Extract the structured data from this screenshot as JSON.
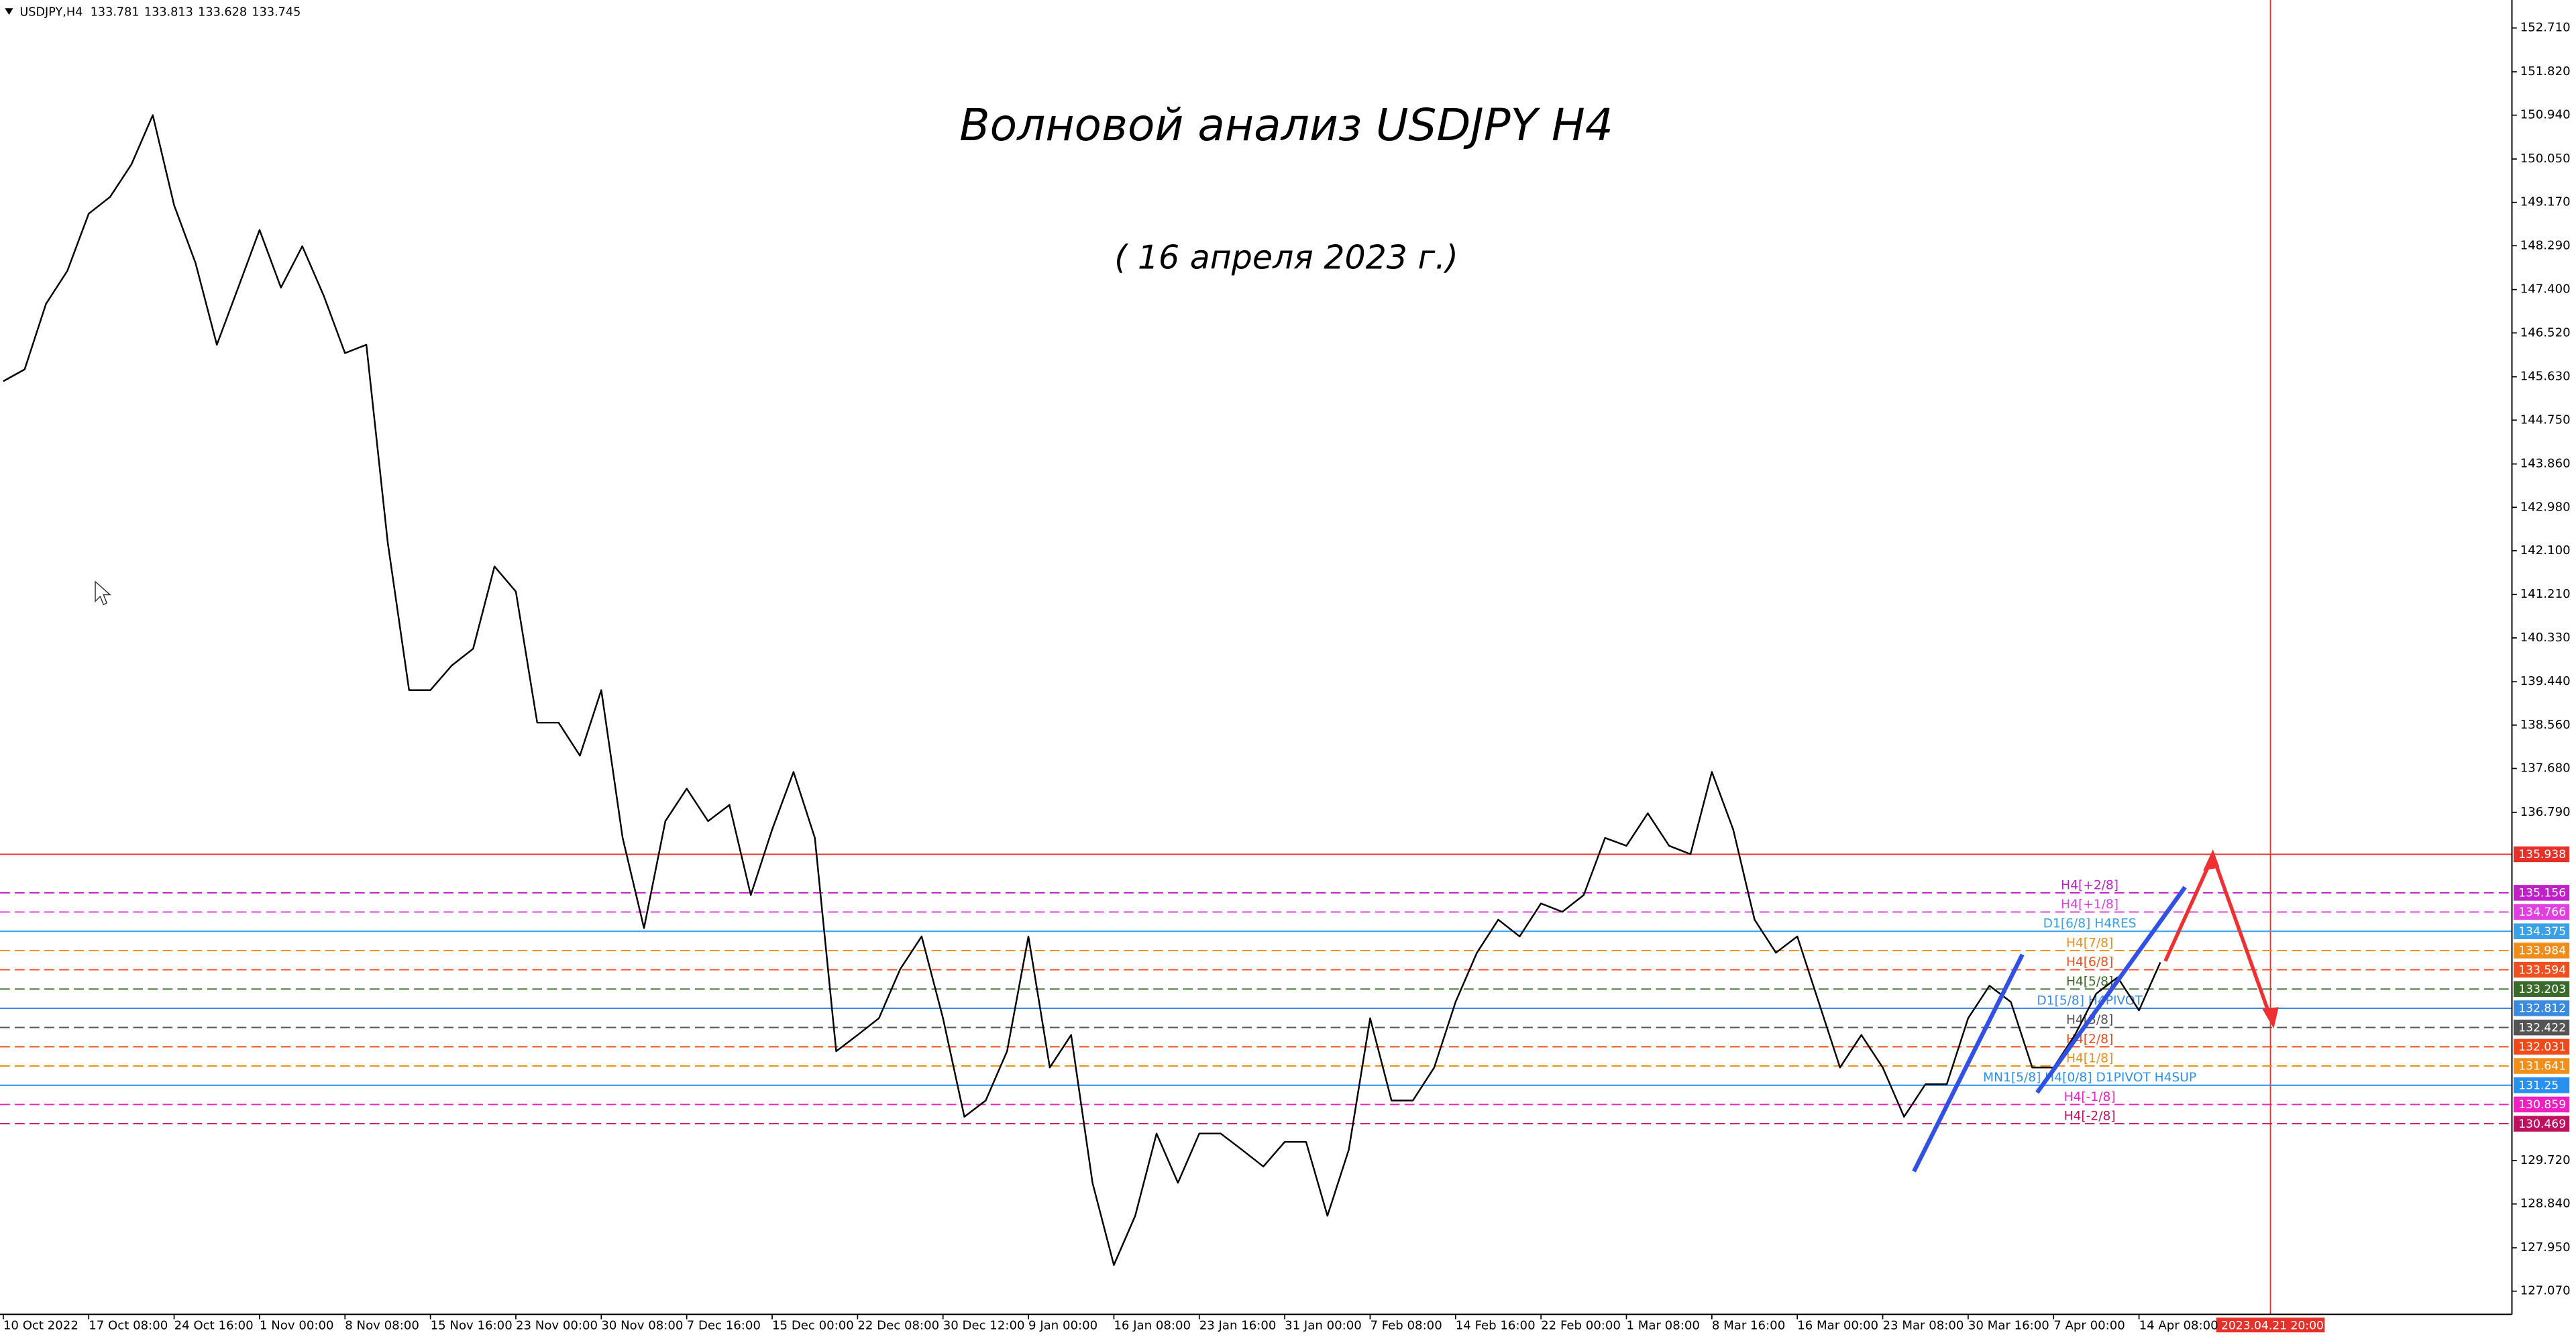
{
  "chart_data": {
    "type": "line",
    "header": {
      "symbol": "USDJPY,H4",
      "ohlc": [
        133.781,
        133.813,
        133.628,
        133.745
      ]
    },
    "title": "Волновой анализ USDJPY H4",
    "subtitle": "( 16 апреля 2023 г.)",
    "categories": [
      "10 Oct 2022",
      null,
      null,
      null,
      "17 Oct 08:00",
      null,
      null,
      null,
      "24 Oct 16:00",
      null,
      null,
      null,
      "1 Nov 00:00",
      null,
      null,
      null,
      "8 Nov 08:00",
      null,
      null,
      null,
      "15 Nov 16:00",
      null,
      null,
      null,
      "23 Nov 00:00",
      null,
      null,
      null,
      "30 Nov 08:00",
      null,
      null,
      null,
      "7 Dec 16:00",
      null,
      null,
      null,
      "15 Dec 00:00",
      null,
      null,
      null,
      "22 Dec 08:00",
      null,
      null,
      null,
      "30 Dec 12:00",
      null,
      null,
      null,
      "9 Jan 00:00",
      null,
      null,
      null,
      "16 Jan 08:00",
      null,
      null,
      null,
      "23 Jan 16:00",
      null,
      null,
      null,
      "31 Jan 00:00",
      null,
      null,
      null,
      "7 Feb 08:00",
      null,
      null,
      null,
      "14 Feb 16:00",
      null,
      null,
      null,
      "22 Feb 00:00",
      null,
      null,
      null,
      "1 Mar 08:00",
      null,
      null,
      null,
      "8 Mar 16:00",
      null,
      null,
      null,
      "16 Mar 00:00",
      null,
      null,
      null,
      "23 Mar 08:00",
      null,
      null,
      null,
      "30 Mar 16:00",
      null,
      null,
      null,
      "7 Apr 00:00",
      null,
      null,
      null,
      "14 Apr 08:00",
      null
    ],
    "values": [
      145.54,
      145.78,
      147.11,
      147.78,
      148.94,
      149.28,
      149.94,
      150.94,
      149.11,
      147.94,
      146.28,
      147.44,
      148.61,
      147.44,
      148.28,
      147.28,
      146.11,
      146.28,
      142.27,
      139.27,
      139.27,
      139.77,
      140.11,
      141.78,
      141.27,
      138.61,
      138.61,
      137.94,
      139.27,
      136.27,
      134.44,
      136.61,
      137.27,
      136.61,
      136.94,
      135.11,
      136.44,
      137.61,
      136.27,
      131.94,
      132.27,
      132.61,
      133.61,
      134.27,
      132.61,
      130.61,
      130.94,
      131.94,
      134.27,
      131.61,
      132.27,
      129.27,
      127.6,
      128.6,
      130.27,
      129.27,
      130.27,
      130.27,
      129.94,
      129.6,
      130.1,
      130.1,
      128.6,
      129.94,
      132.61,
      130.94,
      130.94,
      131.61,
      132.94,
      133.94,
      134.61,
      134.27,
      134.94,
      134.77,
      135.11,
      136.27,
      136.11,
      136.77,
      136.11,
      135.94,
      137.61,
      136.44,
      134.61,
      133.94,
      134.27,
      132.94,
      131.61,
      132.27,
      131.61,
      130.61,
      131.27,
      131.27,
      132.61,
      133.27,
      132.94,
      131.61,
      131.61,
      132.27,
      133.11,
      133.44,
      132.77,
      133.745
    ],
    "color": "#000000",
    "ylim": [
      126.6,
      153.277
    ],
    "yticks": [
      {
        "value": 152.71,
        "label": "152.710"
      },
      {
        "value": 151.82,
        "label": "151.820"
      },
      {
        "value": 150.94,
        "label": "150.940"
      },
      {
        "value": 150.05,
        "label": "150.050"
      },
      {
        "value": 149.17,
        "label": "149.170"
      },
      {
        "value": 148.29,
        "label": "148.290"
      },
      {
        "value": 147.4,
        "label": "147.400"
      },
      {
        "value": 146.52,
        "label": "146.520"
      },
      {
        "value": 145.63,
        "label": "145.630"
      },
      {
        "value": 144.75,
        "label": "144.750"
      },
      {
        "value": 143.86,
        "label": "143.860"
      },
      {
        "value": 142.98,
        "label": "142.980"
      },
      {
        "value": 142.1,
        "label": "142.100"
      },
      {
        "value": 141.21,
        "label": "141.210"
      },
      {
        "value": 140.33,
        "label": "140.330"
      },
      {
        "value": 139.44,
        "label": "139.440"
      },
      {
        "value": 138.56,
        "label": "138.560"
      },
      {
        "value": 137.68,
        "label": "137.680"
      },
      {
        "value": 136.79,
        "label": "136.790"
      },
      {
        "value": 129.72,
        "label": "129.720"
      },
      {
        "value": 128.84,
        "label": "128.840"
      },
      {
        "value": 127.95,
        "label": "127.950"
      },
      {
        "value": 127.07,
        "label": "127.070"
      }
    ],
    "grid": false,
    "levels": [
      {
        "value": 135.938,
        "color": "#e8302a",
        "dashed": false
      },
      {
        "value": 135.156,
        "text": "H4[+2/8]",
        "color": "#c020c8",
        "dashed": true
      },
      {
        "value": 134.766,
        "text": "H4[+1/8]",
        "color": "#e040e0",
        "dashed": true
      },
      {
        "value": 134.375,
        "text": "D1[6/8] H4RES",
        "color": "#3aa0e8",
        "dashed": false
      },
      {
        "value": 133.984,
        "text": "H4[7/8]",
        "color": "#f08c1a",
        "dashed": true
      },
      {
        "value": 133.594,
        "text": "H4[6/8]",
        "color": "#f05020",
        "dashed": true
      },
      {
        "value": 133.203,
        "text": "H4[5/8]",
        "color": "#3a6a2a",
        "dashed": true
      },
      {
        "value": 132.812,
        "text": "D1[5/8] H4PIVOT",
        "color": "#3a8ae0",
        "dashed": false
      },
      {
        "value": 132.422,
        "text": "H4[3/8]",
        "color": "#555555",
        "dashed": true
      },
      {
        "value": 132.031,
        "text": "H4[2/8]",
        "color": "#f04a1a",
        "dashed": true
      },
      {
        "value": 131.641,
        "text": "H4[1/8]",
        "color": "#f0901a",
        "dashed": true
      },
      {
        "value": 131.25,
        "text": "MN1[5/8] H4[0/8] D1PIVOT H4SUP",
        "color": "#2a90f0",
        "dashed": false
      },
      {
        "value": 130.859,
        "text": "H4[-1/8]",
        "color": "#f020c0",
        "dashed": true
      },
      {
        "value": 130.469,
        "text": "H4[-2/8]",
        "color": "#c01060",
        "dashed": true
      }
    ],
    "time_marker": "2023.04.21 20:00"
  }
}
